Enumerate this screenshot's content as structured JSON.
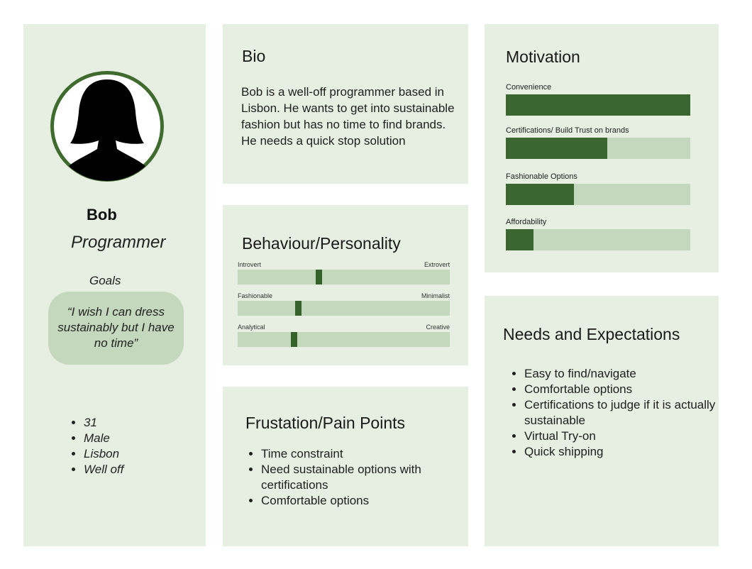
{
  "persona": {
    "name": "Bob",
    "role": "Programmer",
    "goals_label": "Goals",
    "quote": "“I wish I can dress sustainably but I have no time”",
    "demographics": [
      "31",
      "Male",
      "Lisbon",
      "Well off"
    ]
  },
  "bio": {
    "title": "Bio",
    "text": "Bob is a well-off programmer based in Lisbon. He wants to get into sustainable fashion but has no time to find brands. He needs a quick stop solution"
  },
  "behaviour": {
    "title": "Behaviour/Personality",
    "traits": [
      {
        "left": "Introvert",
        "right": "Extrovert",
        "value": 0.38
      },
      {
        "left": "Fashionable",
        "right": "Minimalist",
        "value": 0.28
      },
      {
        "left": "Analytical",
        "right": "Creative",
        "value": 0.26
      }
    ]
  },
  "frustrations": {
    "title": "Frustation/Pain Points",
    "items": [
      "Time constraint",
      "Need sustainable options with certifications",
      "Comfortable options"
    ]
  },
  "motivation": {
    "title": "Motivation",
    "items": [
      {
        "label": "Convenience",
        "value": 1.0
      },
      {
        "label": "Certifications/ Build Trust on brands",
        "value": 0.55
      },
      {
        "label": "Fashionable Options",
        "value": 0.37
      },
      {
        "label": "Affordability",
        "value": 0.15
      }
    ]
  },
  "needs": {
    "title": "Needs and Expectations",
    "items": [
      "Easy to find/navigate",
      "Comfortable options",
      "Certifications to judge if it is actually sustainable",
      "Virtual Try-on",
      "Quick shipping"
    ]
  },
  "colors": {
    "panel_bg": "#e6efe1",
    "track": "#c4d8bd",
    "accent": "#35612a",
    "avatar_ring": "#3f6b2e"
  }
}
